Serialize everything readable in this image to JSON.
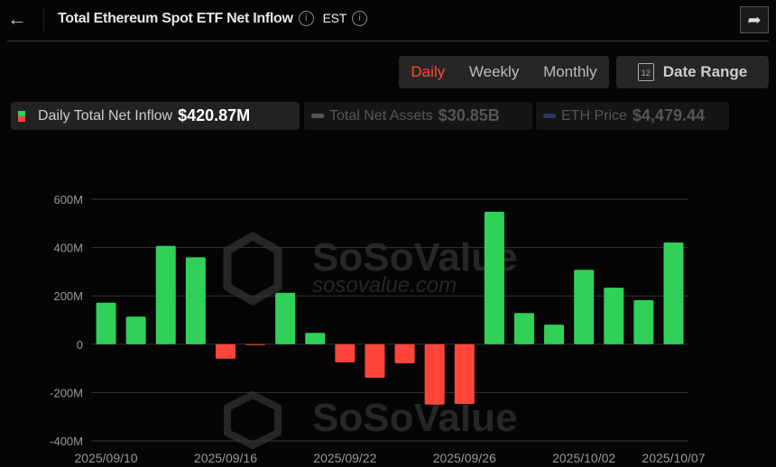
{
  "header": {
    "title": "Total Ethereum Spot ETF Net Inflow",
    "timezone": "EST",
    "back_icon": "arrow-left-icon",
    "share_icon": "share-icon"
  },
  "period_tabs": [
    {
      "label": "Daily",
      "active": true
    },
    {
      "label": "Weekly",
      "active": false
    },
    {
      "label": "Monthly",
      "active": false
    }
  ],
  "date_range": {
    "label": "Date Range",
    "icon_text": "12"
  },
  "legend": [
    {
      "label": "Daily Total Net Inflow",
      "value": "$420.87M",
      "active": true
    },
    {
      "label": "Total Net Assets",
      "value": "$30.85B",
      "active": false
    },
    {
      "label": "ETH Price",
      "value": "$4,479.44",
      "active": false
    }
  ],
  "watermark": {
    "brand": "SoSoValue",
    "url": "sosovalue.com"
  },
  "colors": {
    "positive": "#30d158",
    "negative": "#ff453a",
    "active_tab": "#ff4a2e"
  },
  "chart_data": {
    "type": "bar",
    "categories": [
      "2025/09/10",
      "2025/09/11",
      "2025/09/12",
      "2025/09/15",
      "2025/09/16",
      "2025/09/17",
      "2025/09/18",
      "2025/09/19",
      "2025/09/22",
      "2025/09/23",
      "2025/09/24",
      "2025/09/25",
      "2025/09/26",
      "2025/09/29",
      "2025/09/30",
      "2025/10/01",
      "2025/10/02",
      "2025/10/03",
      "2025/10/06",
      "2025/10/07"
    ],
    "values": [
      172,
      114,
      407,
      360,
      -60,
      -2,
      213,
      47,
      -75,
      -139,
      -79,
      -250,
      -247,
      548,
      129,
      81,
      308,
      234,
      182,
      420.87
    ],
    "unit": "M USD",
    "ylim": [
      -400,
      600
    ],
    "yticks": [
      600,
      400,
      200,
      0,
      -200,
      -400
    ],
    "ytick_labels": [
      "600M",
      "400M",
      "200M",
      "0",
      "-200M",
      "-400M"
    ],
    "xtick_labels": [
      {
        "index": 0,
        "label": "2025/09/10"
      },
      {
        "index": 4,
        "label": "2025/09/16"
      },
      {
        "index": 8,
        "label": "2025/09/22"
      },
      {
        "index": 12,
        "label": "2025/09/26"
      },
      {
        "index": 16,
        "label": "2025/10/02"
      },
      {
        "index": 19,
        "label": "2025/10/07"
      }
    ],
    "grid": true
  }
}
